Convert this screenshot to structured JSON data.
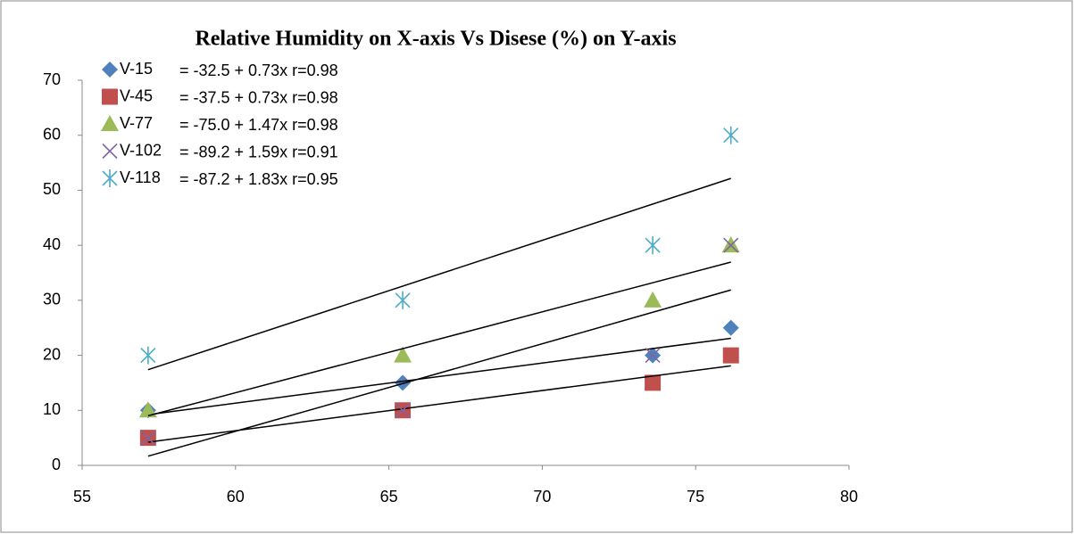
{
  "chart_data": {
    "type": "scatter",
    "title": "Relative Humidity on X-axis Vs Disese (%) on Y-axis",
    "x": [
      57.15,
      65.45,
      73.6,
      76.15
    ],
    "series": [
      {
        "name": "V-15",
        "color": "#4f81bd",
        "marker": "diamond",
        "values": [
          10,
          15,
          20,
          25
        ],
        "equation": "= -32.5 + 0.73x  r=0.98",
        "trend": {
          "intercept": -32.5,
          "slope": 0.73
        }
      },
      {
        "name": "V-45",
        "color": "#c0504d",
        "marker": "square",
        "values": [
          5,
          10,
          15,
          20
        ],
        "equation": "= -37.5 + 0.73x  r=0.98",
        "trend": {
          "intercept": -37.5,
          "slope": 0.73
        }
      },
      {
        "name": "V-77",
        "color": "#9bbb59",
        "marker": "triangle",
        "values": [
          10,
          20,
          30,
          40
        ],
        "equation": "= -75.0 + 1.47x  r=0.98",
        "trend": {
          "intercept": -75.0,
          "slope": 1.47
        }
      },
      {
        "name": "V-102",
        "color": "#8064a2",
        "marker": "x",
        "values": [
          5,
          10,
          20,
          40
        ],
        "equation": "= -89.2 + 1.59x  r=0.91",
        "trend": {
          "intercept": -89.2,
          "slope": 1.59
        }
      },
      {
        "name": "V-118",
        "color": "#4bacc6",
        "marker": "star",
        "values": [
          20,
          30,
          40,
          60
        ],
        "equation": "= -87.2 + 1.83x  r=0.95",
        "trend": {
          "intercept": -87.2,
          "slope": 1.83
        }
      }
    ],
    "xlim": [
      55,
      80
    ],
    "xticks": [
      55,
      60,
      65,
      70,
      75,
      80
    ],
    "ylim": [
      0,
      70
    ],
    "yticks": [
      0,
      10,
      20,
      30,
      40,
      50,
      60,
      70
    ],
    "grid": false,
    "legend": "upper left"
  }
}
